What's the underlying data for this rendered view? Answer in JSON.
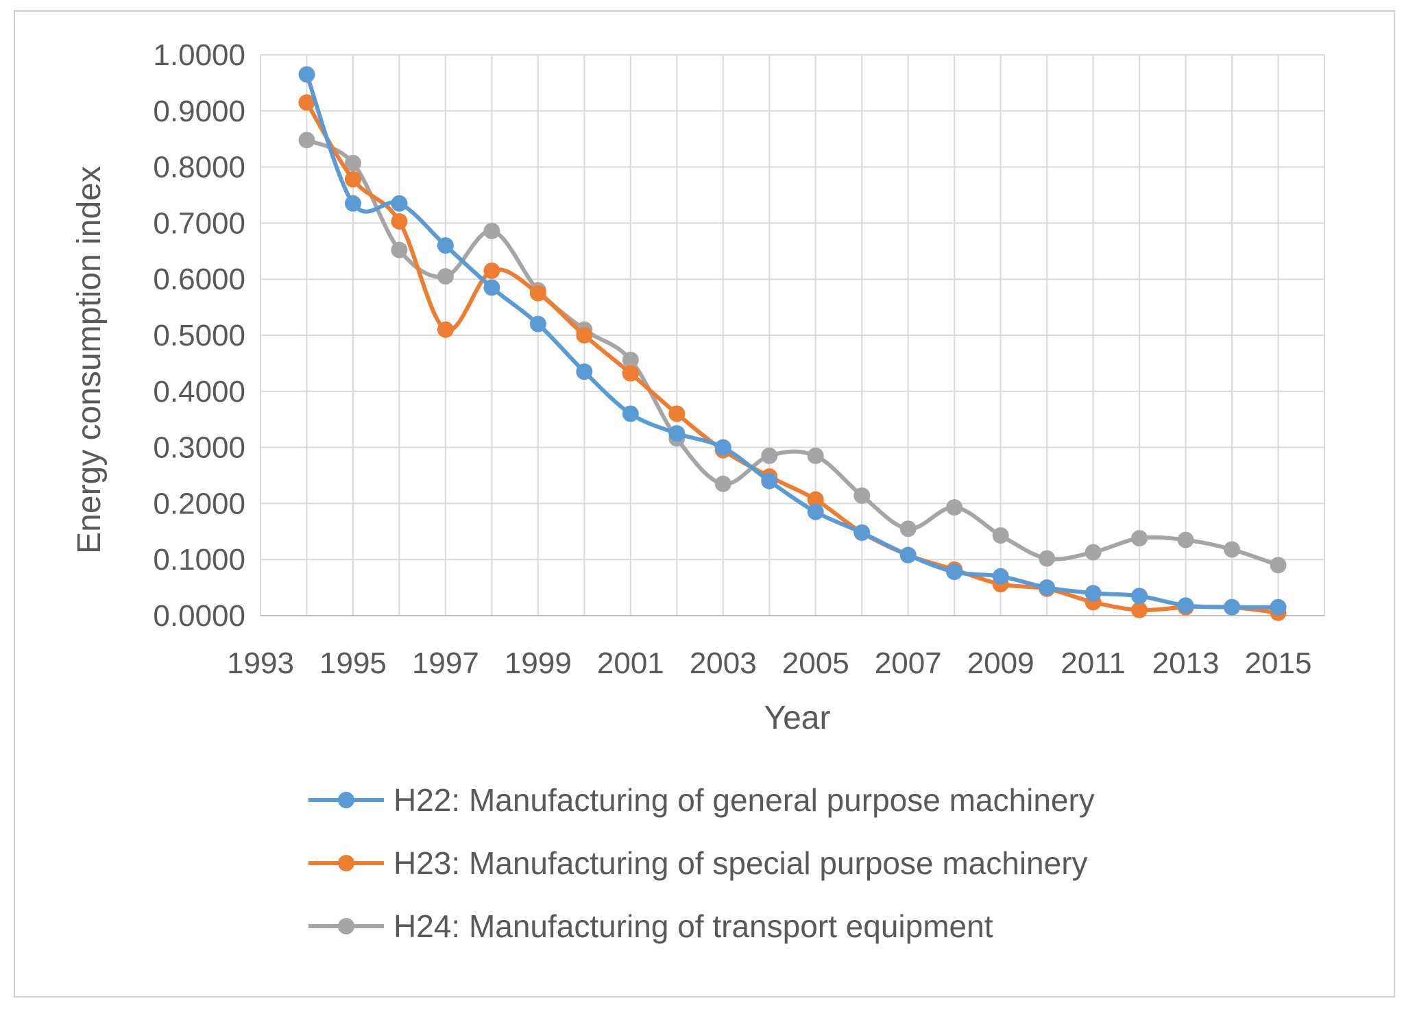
{
  "chart_data": {
    "type": "line",
    "smooth": true,
    "title": "",
    "xlabel": "Year",
    "ylabel": "Energy consumption index",
    "xlim": [
      1993,
      2016
    ],
    "ylim": [
      0,
      1.0
    ],
    "x_tick_labels": [
      "1993",
      "1995",
      "1997",
      "1999",
      "2001",
      "2003",
      "2005",
      "2007",
      "2009",
      "2011",
      "2013",
      "2015"
    ],
    "y_tick_labels": [
      "0.0000",
      "0.1000",
      "0.2000",
      "0.3000",
      "0.4000",
      "0.5000",
      "0.6000",
      "0.7000",
      "0.8000",
      "0.9000",
      "1.0000"
    ],
    "grid": true,
    "legend_position": "bottom",
    "x": [
      1994,
      1995,
      1996,
      1997,
      1998,
      1999,
      2000,
      2001,
      2002,
      2003,
      2004,
      2005,
      2006,
      2007,
      2008,
      2009,
      2010,
      2011,
      2012,
      2013,
      2014,
      2015
    ],
    "series": [
      {
        "name": "H22: Manufacturing of general purpose machinery",
        "color": "#5B9BD5",
        "values": [
          0.965,
          0.735,
          0.735,
          0.66,
          0.585,
          0.52,
          0.435,
          0.36,
          0.325,
          0.3,
          0.24,
          0.185,
          0.148,
          0.108,
          0.078,
          0.07,
          0.05,
          0.04,
          0.035,
          0.018,
          0.015,
          0.015
        ]
      },
      {
        "name": "H23: Manufacturing of special purpose machinery",
        "color": "#ED7D31",
        "values": [
          0.915,
          0.778,
          0.703,
          0.51,
          0.615,
          0.575,
          0.5,
          0.432,
          0.36,
          0.295,
          0.248,
          0.207,
          0.148,
          0.108,
          0.082,
          0.056,
          0.048,
          0.024,
          0.01,
          0.015,
          0.015,
          0.005
        ]
      },
      {
        "name": "H24: Manufacturing of transport equipment",
        "color": "#A5A5A5",
        "values": [
          0.848,
          0.807,
          0.652,
          0.605,
          0.686,
          0.58,
          0.51,
          0.456,
          0.316,
          0.235,
          0.285,
          0.285,
          0.214,
          0.155,
          0.193,
          0.143,
          0.102,
          0.113,
          0.138,
          0.135,
          0.118,
          0.09
        ]
      }
    ]
  }
}
